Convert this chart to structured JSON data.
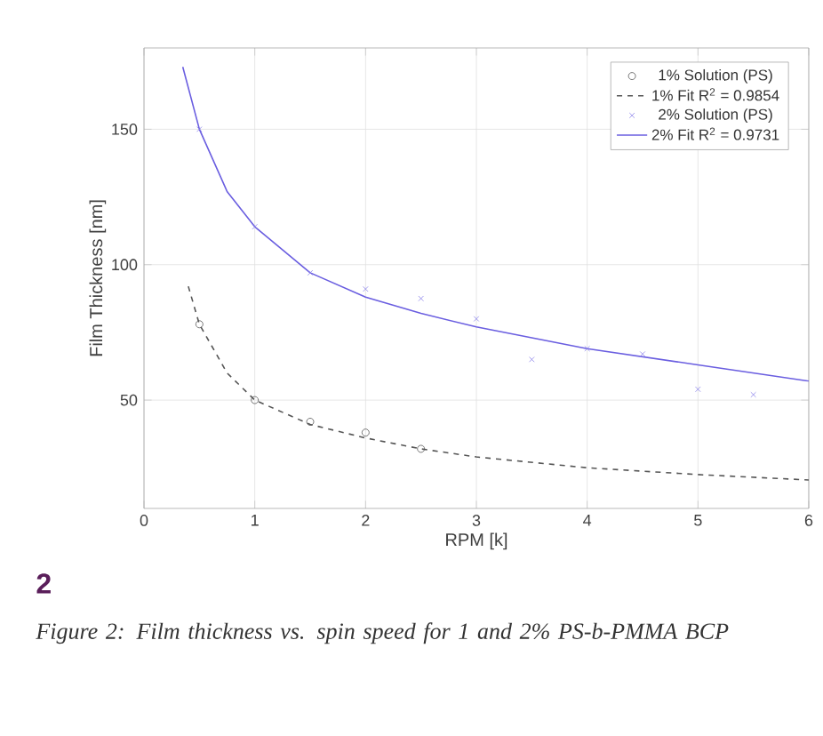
{
  "chart_data": {
    "type": "line",
    "xlabel": "RPM [k]",
    "ylabel": "Film Thickness [nm]",
    "xlim": [
      0,
      6
    ],
    "ylim": [
      10,
      180
    ],
    "xticks": [
      0,
      1,
      2,
      3,
      4,
      5,
      6
    ],
    "yticks": [
      50,
      100,
      150
    ],
    "grid": true,
    "legend": "top right",
    "annotations": [
      "2",
      "Figure 2: Film thickness vs. spin speed for 1 and 2% PS-b-PMMA BCP"
    ],
    "series": [
      {
        "name": "1% Solution (PS)",
        "type": "scatter",
        "marker": "circle",
        "color": "#555555",
        "x": [
          0.5,
          1,
          1.5,
          2,
          2.5
        ],
        "values": [
          78,
          50,
          42,
          38,
          32
        ]
      },
      {
        "name": "1% Fit R$^{2}$ = 0.9854",
        "line_style": "dashed",
        "color": "#555555",
        "x": [
          0.4,
          0.5,
          0.75,
          1,
          1.5,
          2,
          2.5,
          3,
          4,
          5,
          6
        ],
        "values": [
          92,
          78,
          60,
          50,
          41,
          36,
          32,
          29,
          25,
          22.5,
          20.5
        ]
      },
      {
        "name": "2% Solution (PS)",
        "type": "scatter",
        "marker": "cross",
        "color": "#8c83ea",
        "x": [
          0.5,
          1,
          1.5,
          2,
          2.5,
          3,
          3.5,
          4,
          4.5,
          5,
          5.5
        ],
        "values": [
          150,
          114,
          97,
          91,
          87.5,
          80,
          65,
          69,
          67,
          54,
          52
        ]
      },
      {
        "name": "2% Fit R$^{2}$ = 0.9731",
        "line_style": "solid",
        "color": "#6a5ee0",
        "x": [
          0.35,
          0.5,
          0.75,
          1,
          1.5,
          2,
          2.5,
          3,
          4,
          5,
          6
        ],
        "values": [
          173,
          150,
          127,
          114,
          97,
          88,
          82,
          77,
          69,
          63,
          57
        ]
      }
    ]
  }
}
